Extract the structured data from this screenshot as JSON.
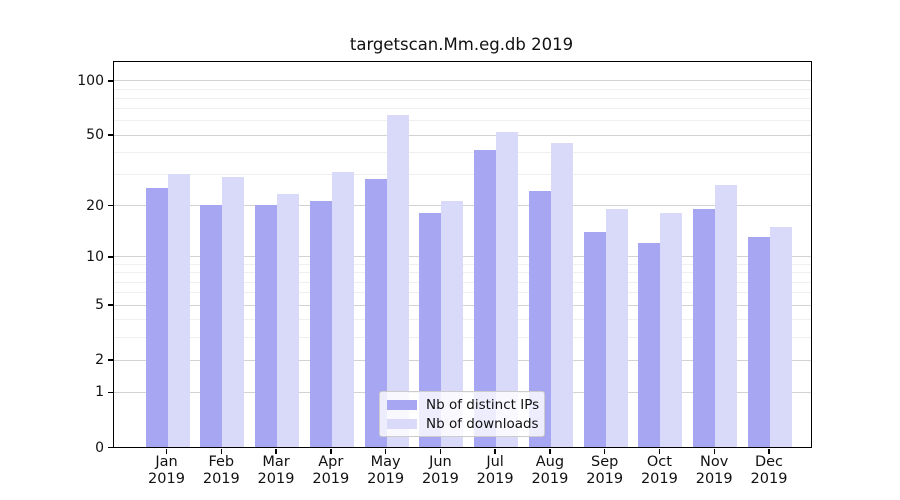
{
  "title": "targetscan.Mm.eg.db 2019",
  "chart_data": {
    "type": "bar",
    "categories": [
      "Jan",
      "Feb",
      "Mar",
      "Apr",
      "May",
      "Jun",
      "Jul",
      "Aug",
      "Sep",
      "Oct",
      "Nov",
      "Dec"
    ],
    "year_label": "2019",
    "series": [
      {
        "name": "Nb of distinct IPs",
        "color": "#a6a6f2",
        "values": [
          25,
          20,
          20,
          21,
          28,
          18,
          41,
          24,
          14,
          12,
          19,
          13
        ]
      },
      {
        "name": "Nb of downloads",
        "color": "#d9d9fa",
        "values": [
          30,
          29,
          23,
          31,
          64,
          21,
          52,
          45,
          19,
          18,
          26,
          15
        ]
      }
    ],
    "xlabel": "",
    "ylabel": "",
    "yscale": "log1p",
    "ylim": [
      0,
      126
    ],
    "yticks": [
      0,
      1,
      2,
      5,
      10,
      20,
      50,
      100
    ],
    "minor_gridlines": [
      3,
      4,
      6,
      7,
      8,
      9,
      30,
      40,
      60,
      70,
      80,
      90
    ],
    "grid": "on",
    "legend_position": "inside-bottom-center"
  }
}
